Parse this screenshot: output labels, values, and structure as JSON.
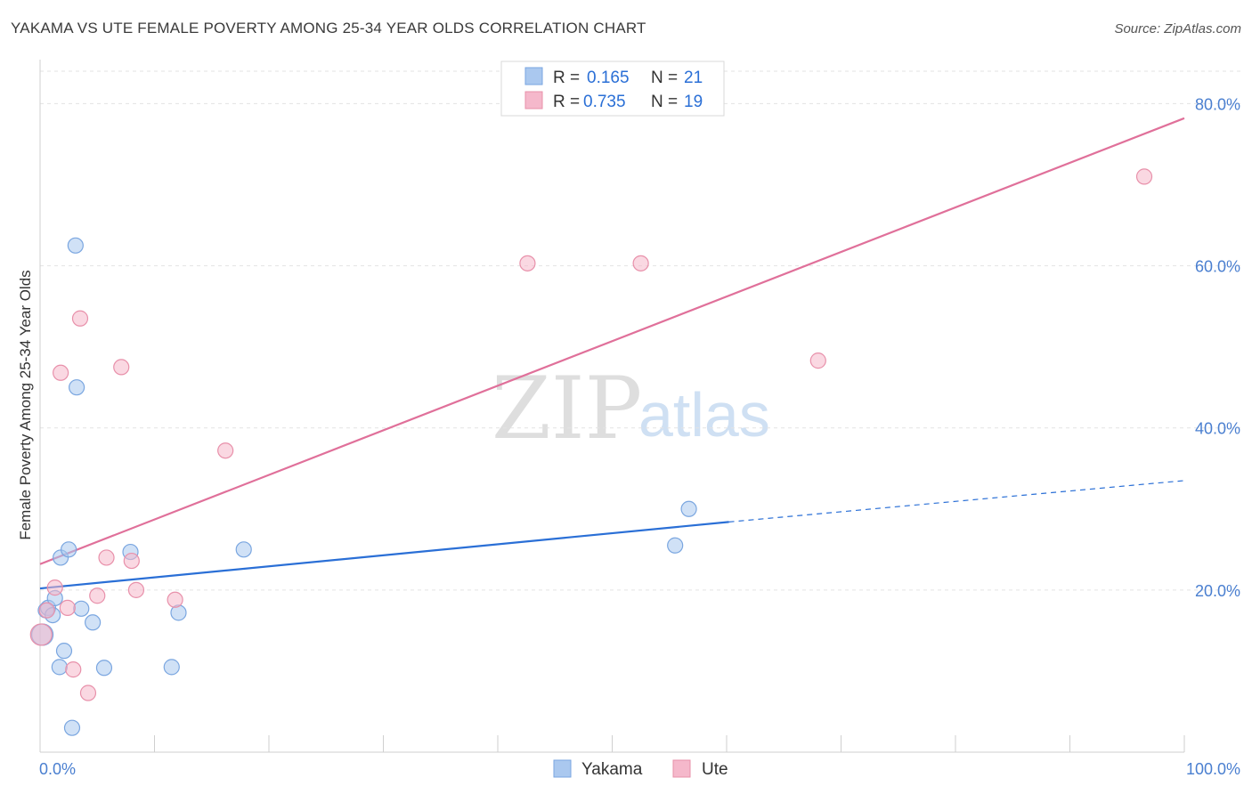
{
  "header": {
    "title": "YAKAMA VS UTE FEMALE POVERTY AMONG 25-34 YEAR OLDS CORRELATION CHART",
    "source": "Source: ZipAtlas.com"
  },
  "watermark": {
    "zip": "ZIP",
    "atlas": "atlas"
  },
  "legend": {
    "rows": [
      {
        "r_label": "R =",
        "r_value": "0.165",
        "n_label": "N =",
        "n_value": "21",
        "color": "#aac8ef"
      },
      {
        "r_label": "R =",
        "r_value": "0.735",
        "n_label": "N =",
        "n_value": "19",
        "color": "#f5b8cb"
      }
    ]
  },
  "chart_data": {
    "type": "scatter",
    "title": "YAKAMA VS UTE FEMALE POVERTY AMONG 25-34 YEAR OLDS CORRELATION CHART",
    "xlabel": "",
    "ylabel": "Female Poverty Among 25-34 Year Olds",
    "xlim": [
      0,
      100
    ],
    "ylim": [
      0,
      84
    ],
    "x_tick_labels": [
      "0.0%",
      "100.0%"
    ],
    "y_ticks": [
      20,
      40,
      60,
      80
    ],
    "y_tick_labels": [
      "20.0%",
      "40.0%",
      "60.0%",
      "80.0%"
    ],
    "grid": true,
    "legend_position": "top-center",
    "series": [
      {
        "name": "Yakama",
        "color": "#aac8ef",
        "stroke": "#7aa6e0",
        "line_color": "#2a6fd6",
        "points": [
          {
            "x": 0.2,
            "y": 14.5
          },
          {
            "x": 0.5,
            "y": 17.5
          },
          {
            "x": 0.7,
            "y": 17.8
          },
          {
            "x": 1.1,
            "y": 16.9
          },
          {
            "x": 1.3,
            "y": 19.0
          },
          {
            "x": 1.7,
            "y": 10.5
          },
          {
            "x": 1.8,
            "y": 24.0
          },
          {
            "x": 2.1,
            "y": 12.5
          },
          {
            "x": 2.5,
            "y": 25.0
          },
          {
            "x": 2.8,
            "y": 3.0
          },
          {
            "x": 3.1,
            "y": 62.5
          },
          {
            "x": 3.2,
            "y": 45.0
          },
          {
            "x": 3.6,
            "y": 17.7
          },
          {
            "x": 4.6,
            "y": 16.0
          },
          {
            "x": 5.6,
            "y": 10.4
          },
          {
            "x": 7.9,
            "y": 24.7
          },
          {
            "x": 11.5,
            "y": 10.5
          },
          {
            "x": 12.1,
            "y": 17.2
          },
          {
            "x": 17.8,
            "y": 25.0
          },
          {
            "x": 55.5,
            "y": 25.5
          },
          {
            "x": 56.7,
            "y": 30.0
          }
        ],
        "trend": {
          "x0": 0,
          "y0": 20.2,
          "x1": 60.2,
          "y1": 28.4,
          "dash_x1": 100,
          "dash_y1": 33.5
        }
      },
      {
        "name": "Ute",
        "color": "#f5b8cb",
        "stroke": "#e890aa",
        "line_color": "#e0709a",
        "points": [
          {
            "x": 0.1,
            "y": 14.5
          },
          {
            "x": 0.6,
            "y": 17.5
          },
          {
            "x": 1.3,
            "y": 20.3
          },
          {
            "x": 1.8,
            "y": 46.8
          },
          {
            "x": 2.4,
            "y": 17.8
          },
          {
            "x": 2.9,
            "y": 10.2
          },
          {
            "x": 3.5,
            "y": 53.5
          },
          {
            "x": 4.2,
            "y": 7.3
          },
          {
            "x": 5.0,
            "y": 19.3
          },
          {
            "x": 5.8,
            "y": 24.0
          },
          {
            "x": 7.1,
            "y": 47.5
          },
          {
            "x": 8.0,
            "y": 23.6
          },
          {
            "x": 8.4,
            "y": 20.0
          },
          {
            "x": 11.8,
            "y": 18.8
          },
          {
            "x": 16.2,
            "y": 37.2
          },
          {
            "x": 42.6,
            "y": 60.3
          },
          {
            "x": 52.5,
            "y": 60.3
          },
          {
            "x": 68.0,
            "y": 48.3
          },
          {
            "x": 96.5,
            "y": 71.0
          }
        ],
        "trend": {
          "x0": 0,
          "y0": 23.2,
          "x1": 100,
          "y1": 78.2
        }
      }
    ]
  }
}
